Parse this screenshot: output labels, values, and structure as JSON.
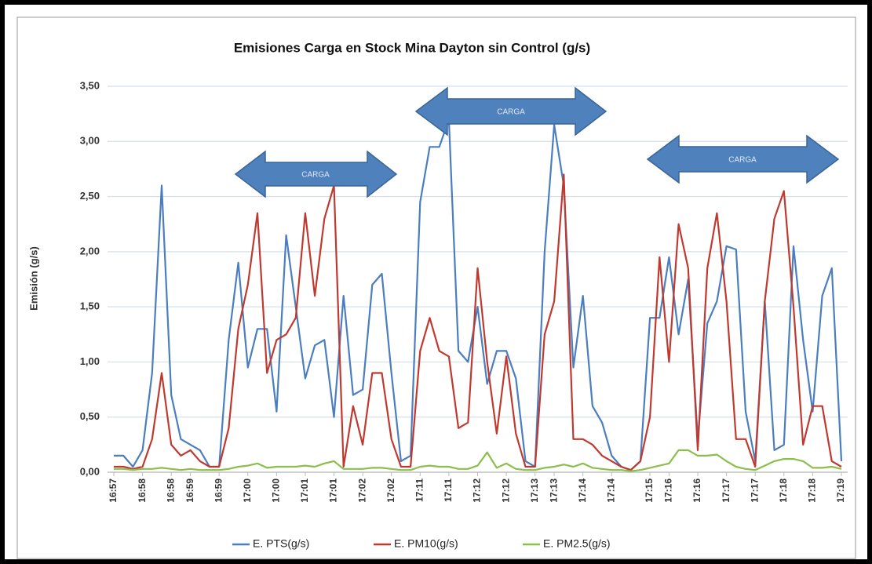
{
  "chart_data": {
    "type": "line",
    "title": "Emisiones Carga en Stock  Mina Dayton sin Control (g/s)",
    "y_label": "Emisión (g/s)",
    "annotations": [
      "CARGA",
      "CARGA",
      "CARGA"
    ],
    "categories": [
      "16:57",
      null,
      null,
      "16:58",
      null,
      null,
      "16:58",
      null,
      "16:59",
      null,
      null,
      "16:59",
      null,
      null,
      "17:00",
      null,
      null,
      "17:00",
      null,
      null,
      "17:01",
      null,
      null,
      "17:01",
      null,
      null,
      "17:02",
      null,
      null,
      "17:02",
      null,
      null,
      "17:11",
      null,
      null,
      "17:11",
      null,
      null,
      "17:12",
      null,
      null,
      "17:12",
      null,
      null,
      "17:13",
      null,
      "17:13",
      null,
      null,
      "17:14",
      null,
      null,
      "17:14",
      null,
      null,
      null,
      "17:15",
      null,
      "17:16",
      null,
      null,
      "17:16",
      null,
      null,
      "17:17",
      null,
      null,
      "17:17",
      null,
      null,
      "17:18",
      null,
      null,
      "17:18",
      null,
      null,
      "17:19"
    ],
    "series": [
      {
        "name": "E. PTS(g/s)",
        "color": "#4a7ebf",
        "values": [
          0.15,
          0.15,
          0.05,
          0.2,
          0.9,
          2.6,
          0.7,
          0.3,
          0.25,
          0.2,
          0.05,
          0.05,
          1.2,
          1.9,
          0.95,
          1.3,
          1.3,
          0.55,
          2.15,
          1.5,
          0.85,
          1.15,
          1.2,
          0.5,
          1.6,
          0.7,
          0.75,
          1.7,
          1.8,
          0.9,
          0.1,
          0.15,
          2.45,
          2.95,
          2.95,
          3.2,
          1.1,
          1.0,
          1.5,
          0.8,
          1.1,
          1.1,
          0.85,
          0.1,
          0.05,
          2.0,
          3.15,
          2.6,
          0.95,
          1.6,
          0.6,
          0.45,
          0.15,
          0.05,
          0.02,
          0.1,
          1.4,
          1.4,
          1.95,
          1.25,
          1.75,
          0.3,
          1.35,
          1.55,
          2.05,
          2.02,
          0.55,
          0.1,
          1.55,
          0.2,
          0.25,
          2.05,
          1.2,
          0.55,
          1.6,
          1.85,
          0.1
        ]
      },
      {
        "name": "E. PM10(g/s)",
        "color": "#c0392f",
        "values": [
          0.05,
          0.05,
          0.03,
          0.05,
          0.3,
          0.9,
          0.25,
          0.15,
          0.2,
          0.1,
          0.05,
          0.05,
          0.4,
          1.3,
          1.7,
          2.35,
          0.9,
          1.2,
          1.25,
          1.4,
          2.35,
          1.6,
          2.3,
          2.6,
          0.05,
          0.6,
          0.25,
          0.9,
          0.9,
          0.3,
          0.05,
          0.05,
          1.1,
          1.4,
          1.1,
          1.05,
          0.4,
          0.45,
          1.85,
          1.0,
          0.35,
          1.05,
          0.35,
          0.05,
          0.05,
          1.25,
          1.55,
          2.7,
          0.3,
          0.3,
          0.25,
          0.15,
          0.1,
          0.05,
          0.02,
          0.1,
          0.5,
          1.95,
          1.0,
          2.25,
          1.85,
          0.2,
          1.85,
          2.35,
          1.55,
          0.3,
          0.3,
          0.05,
          1.55,
          2.3,
          2.55,
          1.5,
          0.25,
          0.6,
          0.6,
          0.1,
          0.05
        ]
      },
      {
        "name": "E. PM2.5(g/s)",
        "color": "#8cbf4a",
        "values": [
          0.03,
          0.03,
          0.02,
          0.03,
          0.03,
          0.04,
          0.03,
          0.02,
          0.03,
          0.02,
          0.02,
          0.02,
          0.03,
          0.05,
          0.06,
          0.08,
          0.04,
          0.05,
          0.05,
          0.05,
          0.06,
          0.05,
          0.08,
          0.1,
          0.03,
          0.03,
          0.03,
          0.04,
          0.04,
          0.03,
          0.02,
          0.02,
          0.05,
          0.06,
          0.05,
          0.05,
          0.03,
          0.03,
          0.06,
          0.18,
          0.04,
          0.08,
          0.03,
          0.02,
          0.02,
          0.04,
          0.05,
          0.07,
          0.05,
          0.08,
          0.04,
          0.03,
          0.02,
          0.02,
          0.01,
          0.02,
          0.04,
          0.06,
          0.08,
          0.2,
          0.2,
          0.15,
          0.15,
          0.16,
          0.1,
          0.05,
          0.03,
          0.02,
          0.06,
          0.1,
          0.12,
          0.12,
          0.1,
          0.04,
          0.04,
          0.05,
          0.03
        ]
      }
    ],
    "ylim": [
      0,
      3.5
    ],
    "yticks": [
      {
        "value": 0,
        "label": "0,00"
      },
      {
        "value": 0.5,
        "label": "0,50"
      },
      {
        "value": 1,
        "label": "1,00"
      },
      {
        "value": 1.5,
        "label": "1,50"
      },
      {
        "value": 2,
        "label": "2,00"
      },
      {
        "value": 2.5,
        "label": "2,50"
      },
      {
        "value": 3,
        "label": "3,00"
      },
      {
        "value": 3.5,
        "label": "3,50"
      }
    ],
    "grid": true,
    "legend": "bottom"
  }
}
